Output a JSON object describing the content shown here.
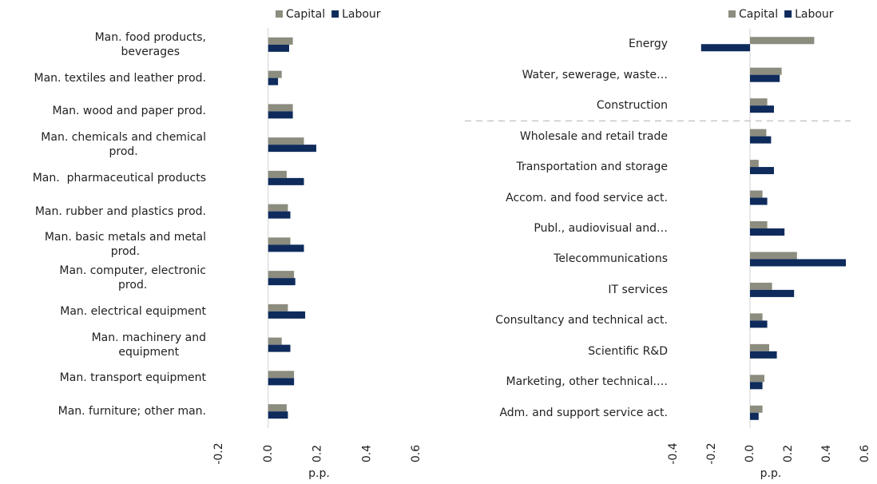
{
  "chart_data": [
    {
      "type": "barh",
      "axis_label": "p.p.",
      "categories": [
        "Man. food products,\nbeverages",
        "Man. textiles and leather prod.",
        "Man. wood and paper prod.",
        "Man. chemicals and chemical\nprod.",
        "Man.  pharmaceutical products",
        "Man. rubber and plastics prod.",
        "Man. basic metals and metal\nprod.",
        "Man. computer, electronic\nprod.",
        "Man. electrical equipment",
        "Man. machinery and\nequipment",
        "Man. transport equipment",
        "Man. furniture; other man."
      ],
      "series": [
        {
          "name": "Capital",
          "color": "#8c8c7f",
          "values": [
            0.1,
            0.055,
            0.1,
            0.145,
            0.075,
            0.08,
            0.09,
            0.105,
            0.08,
            0.055,
            0.105,
            0.075
          ]
        },
        {
          "name": "Labour",
          "color": "#0e2b5c",
          "values": [
            0.085,
            0.04,
            0.1,
            0.195,
            0.145,
            0.09,
            0.145,
            0.11,
            0.15,
            0.09,
            0.105,
            0.08
          ]
        }
      ],
      "xlim": [
        -0.2,
        0.6
      ],
      "xticks": [
        -0.2,
        {
          "value": 0,
          "label": "0.0"
        },
        0.2,
        0.4,
        0.6
      ]
    },
    {
      "type": "barh",
      "axis_label": "p.p.",
      "categories": [
        "Energy",
        "Water, sewerage, waste…",
        "Construction",
        "Wholesale and retail trade",
        "Transportation and storage",
        "Accom. and food service act.",
        "Publ., audiovisual and…",
        "Telecommunications",
        "IT services",
        "Consultancy and technical act.",
        "Scientific R&D",
        "Marketing, other technical.…",
        "Adm. and support service act."
      ],
      "series": [
        {
          "name": "Capital",
          "color": "#8c8c7f",
          "values": [
            0.335,
            0.165,
            0.09,
            0.085,
            0.045,
            0.065,
            0.09,
            0.245,
            0.115,
            0.065,
            0.1,
            0.075,
            0.065
          ]
        },
        {
          "name": "Labour",
          "color": "#0e2b5c",
          "values": [
            -0.255,
            0.155,
            0.125,
            0.11,
            0.125,
            0.09,
            0.18,
            0.5,
            0.23,
            0.09,
            0.14,
            0.065,
            0.045
          ]
        }
      ],
      "xlim": [
        -0.4,
        0.6
      ],
      "xticks": [
        -0.4,
        -0.2,
        {
          "value": 0,
          "label": "0.0"
        },
        0.2,
        0.4,
        0.6
      ]
    }
  ]
}
